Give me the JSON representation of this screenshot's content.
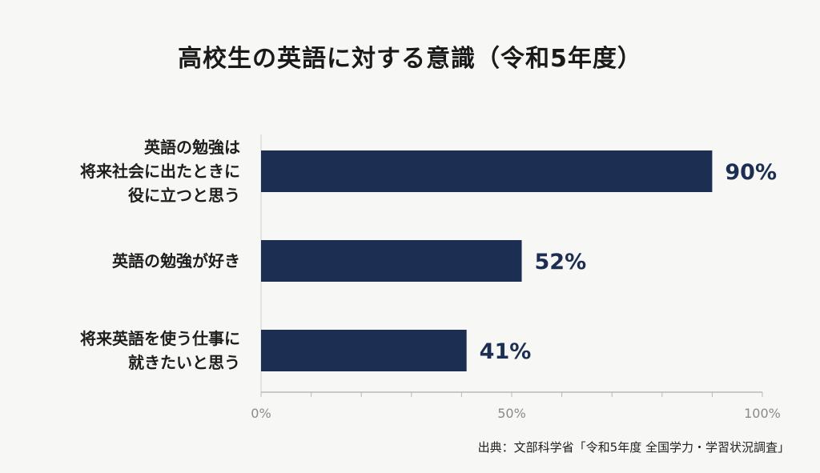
{
  "chart_data": {
    "type": "bar",
    "orientation": "horizontal",
    "title": "高校生の英語に対する意識（令和5年度）",
    "categories": [
      "英語の勉強は\n将来社会に出たときに\n役に立つと思う",
      "英語の勉強が好き",
      "将来英語を使う仕事に\n就きたいと思う"
    ],
    "values": [
      90,
      52,
      41
    ],
    "value_labels": [
      "90%",
      "52%",
      "41%"
    ],
    "xlim": [
      0,
      100
    ],
    "xticks": [
      0,
      50,
      100
    ],
    "xtick_labels": [
      "0%",
      "50%",
      "100%"
    ],
    "grid": false,
    "legend": "none",
    "bar_color": "#1c2f52",
    "label_color": "#1c2f52",
    "source": "出典：文部科学省「令和5年度 全国学力・学習状況調査」"
  }
}
